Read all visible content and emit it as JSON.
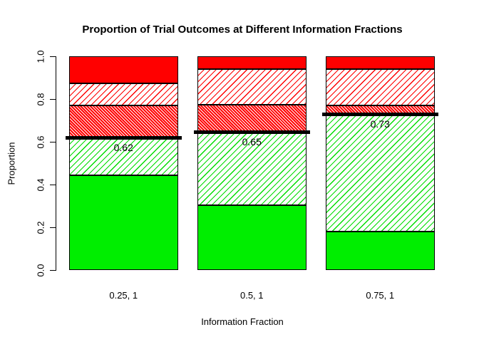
{
  "chart_data": {
    "type": "bar",
    "stacked": true,
    "title": "Proportion of Trial Outcomes at Different Information Fractions",
    "xlabel": "Information Fraction",
    "ylabel": "Proportion",
    "ylim": [
      0,
      1
    ],
    "grid": false,
    "legend": "none",
    "yticks": {
      "values": [
        0.0,
        0.2,
        0.4,
        0.6,
        0.8,
        1.0
      ],
      "labels": [
        "0.0",
        "0.2",
        "0.4",
        "0.6",
        "0.8",
        "1.0"
      ]
    },
    "categories": [
      "0.25, 1",
      "0.5, 1",
      "0.75, 1"
    ],
    "series": [
      {
        "name": "green-solid",
        "fill": "solid",
        "color": "#00ee00",
        "values": [
          0.445,
          0.305,
          0.18
        ]
      },
      {
        "name": "green-hatch",
        "fill": "diagonal-hatch-45",
        "color": "#00dd00",
        "values": [
          0.175,
          0.34,
          0.55
        ]
      },
      {
        "name": "red-dense-hatch",
        "fill": "dense-hatch-135",
        "color": "#ff0000",
        "values": [
          0.15,
          0.13,
          0.04
        ]
      },
      {
        "name": "red-sparse-hatch",
        "fill": "diagonal-hatch-45",
        "color": "#ff0000",
        "values": [
          0.105,
          0.165,
          0.17
        ]
      },
      {
        "name": "red-solid",
        "fill": "solid",
        "color": "#ff0000",
        "values": [
          0.125,
          0.06,
          0.06
        ]
      }
    ],
    "threshold_lines": {
      "color": "#000000",
      "values": [
        0.62,
        0.645,
        0.73
      ],
      "labels": [
        "0.62",
        "0.65",
        "0.73"
      ]
    }
  }
}
